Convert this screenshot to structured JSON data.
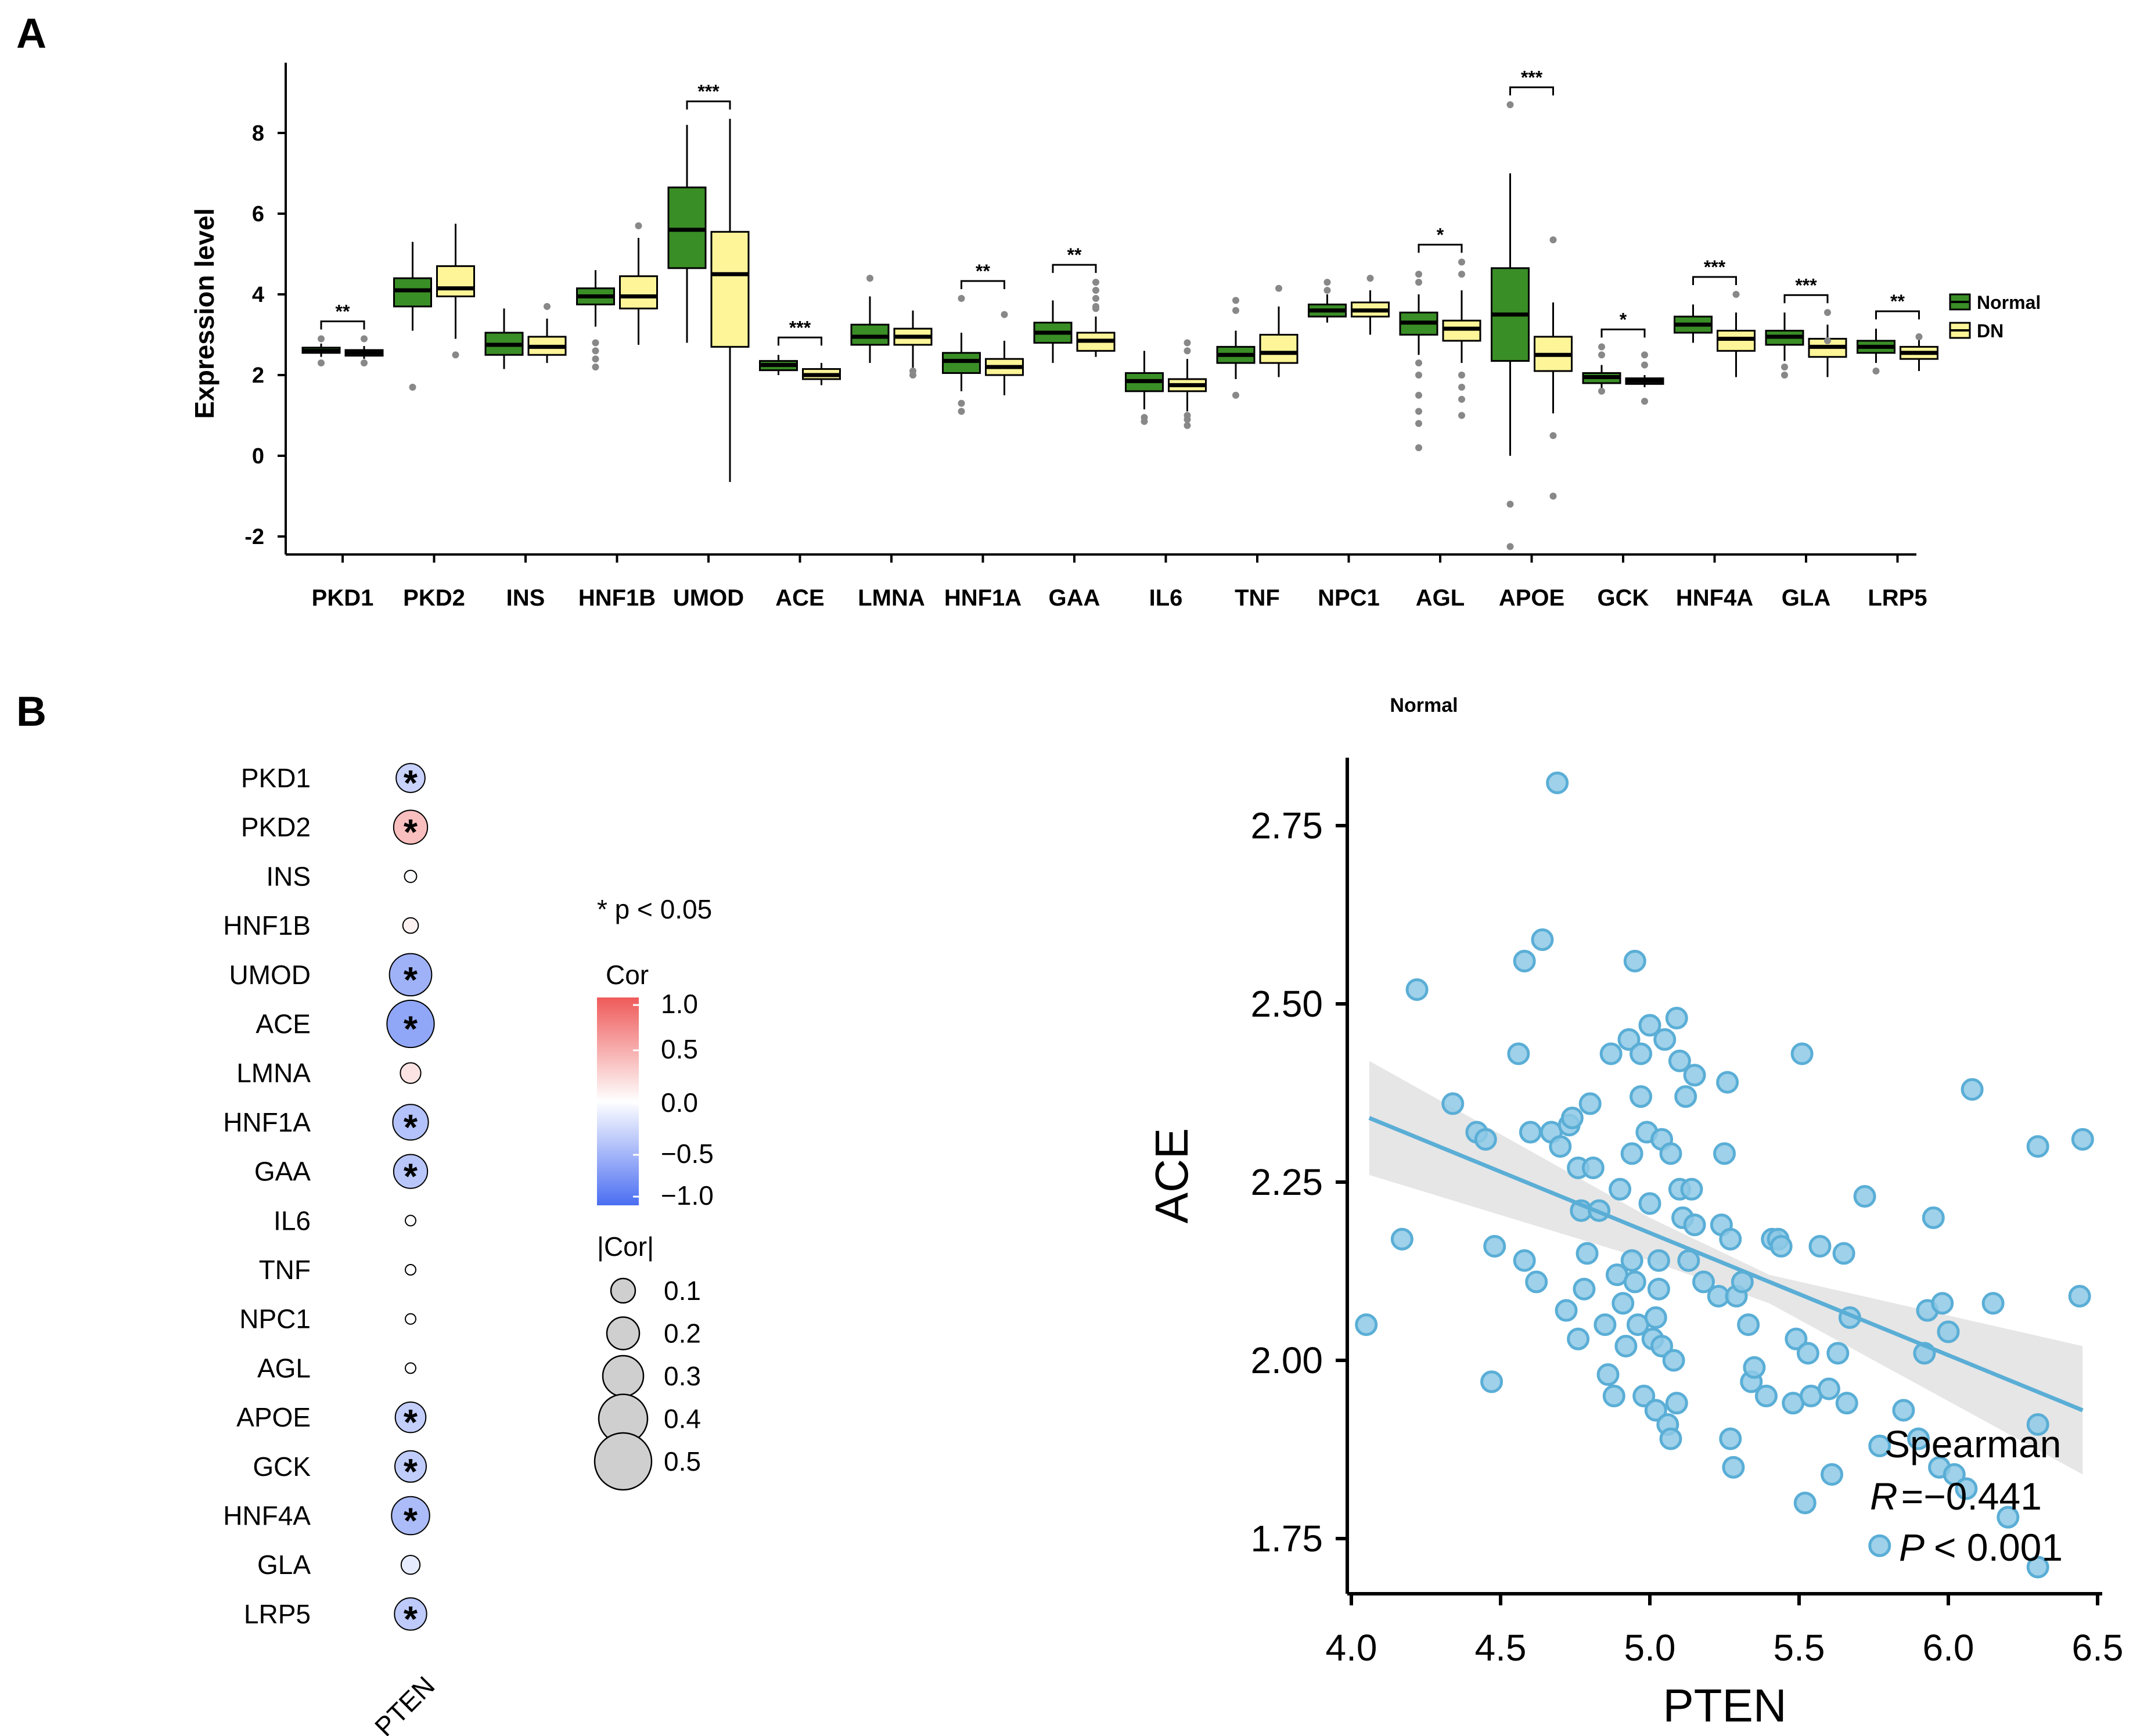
{
  "colors": {
    "normal": "#3a8e26",
    "dn": "#fdf598",
    "scatter": "#6cb7db",
    "line": "#5aaed6",
    "band": "#d9d9d9",
    "pos": "#ef5a5a",
    "neg": "#4b6ef2"
  },
  "panel_a": {
    "label": "A",
    "chart_data": {
      "type": "box",
      "title": "",
      "xlabel": "",
      "ylabel": "Expression level",
      "ylim": [
        -2.5,
        9.5
      ],
      "yticks": [
        -2,
        0,
        2,
        4,
        6,
        8
      ],
      "categories": [
        "PKD1",
        "PKD2",
        "INS",
        "HNF1B",
        "UMOD",
        "ACE",
        "LMNA",
        "HNF1A",
        "GAA",
        "IL6",
        "TNF",
        "NPC1",
        "AGL",
        "APOE",
        "GCK",
        "HNF4A",
        "GLA",
        "LRP5"
      ],
      "significance": [
        "**",
        "",
        "",
        "",
        "***",
        "***",
        "",
        "**",
        "**",
        "",
        "",
        "",
        "*",
        "***",
        "*",
        "***",
        "***",
        "**"
      ],
      "legend": [
        {
          "name": "Normal"
        },
        {
          "name": "DN"
        }
      ],
      "series": [
        {
          "name": "Normal",
          "boxes": [
            {
              "min": 2.45,
              "q1": 2.55,
              "median": 2.6,
              "q3": 2.68,
              "max": 2.78,
              "outliers": [
                2.3,
                2.9
              ]
            },
            {
              "min": 3.1,
              "q1": 3.7,
              "median": 4.1,
              "q3": 4.4,
              "max": 5.3,
              "outliers": [
                1.7
              ]
            },
            {
              "min": 2.15,
              "q1": 2.5,
              "median": 2.75,
              "q3": 3.05,
              "max": 3.65,
              "outliers": []
            },
            {
              "min": 3.2,
              "q1": 3.75,
              "median": 3.95,
              "q3": 4.15,
              "max": 4.6,
              "outliers": [
                2.2,
                2.8,
                2.6,
                2.4
              ]
            },
            {
              "min": 2.8,
              "q1": 4.65,
              "median": 5.6,
              "q3": 6.65,
              "max": 8.2,
              "outliers": []
            },
            {
              "min": 2.0,
              "q1": 2.12,
              "median": 2.25,
              "q3": 2.35,
              "max": 2.5,
              "outliers": []
            },
            {
              "min": 2.3,
              "q1": 2.75,
              "median": 2.95,
              "q3": 3.25,
              "max": 3.95,
              "outliers": [
                4.4
              ]
            },
            {
              "min": 1.6,
              "q1": 2.05,
              "median": 2.35,
              "q3": 2.55,
              "max": 3.05,
              "outliers": [
                1.1,
                1.3,
                3.9
              ]
            },
            {
              "min": 2.3,
              "q1": 2.8,
              "median": 3.05,
              "q3": 3.3,
              "max": 3.85,
              "outliers": []
            },
            {
              "min": 1.15,
              "q1": 1.6,
              "median": 1.85,
              "q3": 2.05,
              "max": 2.6,
              "outliers": [
                0.85,
                0.95
              ]
            },
            {
              "min": 1.9,
              "q1": 2.3,
              "median": 2.5,
              "q3": 2.7,
              "max": 3.1,
              "outliers": [
                1.5,
                3.85,
                3.6
              ]
            },
            {
              "min": 3.3,
              "q1": 3.45,
              "median": 3.6,
              "q3": 3.75,
              "max": 4.0,
              "outliers": [
                4.3,
                4.1
              ]
            },
            {
              "min": 2.5,
              "q1": 3.0,
              "median": 3.3,
              "q3": 3.55,
              "max": 4.0,
              "outliers": [
                0.2,
                0.8,
                1.1,
                1.5,
                2.0,
                2.3,
                4.3,
                4.5
              ]
            },
            {
              "min": 0.0,
              "q1": 2.35,
              "median": 3.5,
              "q3": 4.65,
              "max": 7.0,
              "outliers": [
                8.7,
                -1.2,
                -2.25
              ]
            },
            {
              "min": 1.65,
              "q1": 1.8,
              "median": 1.95,
              "q3": 2.05,
              "max": 2.25,
              "outliers": [
                2.5,
                2.7,
                1.6
              ]
            },
            {
              "min": 2.8,
              "q1": 3.05,
              "median": 3.25,
              "q3": 3.45,
              "max": 3.75,
              "outliers": []
            },
            {
              "min": 2.35,
              "q1": 2.75,
              "median": 2.95,
              "q3": 3.1,
              "max": 3.55,
              "outliers": [
                2.0,
                2.2
              ]
            },
            {
              "min": 2.3,
              "q1": 2.55,
              "median": 2.7,
              "q3": 2.85,
              "max": 3.15,
              "outliers": [
                2.1
              ]
            }
          ]
        },
        {
          "name": "DN",
          "boxes": [
            {
              "min": 2.4,
              "q1": 2.48,
              "median": 2.55,
              "q3": 2.62,
              "max": 2.72,
              "outliers": [
                2.9,
                2.3
              ]
            },
            {
              "min": 2.9,
              "q1": 3.95,
              "median": 4.15,
              "q3": 4.7,
              "max": 5.75,
              "outliers": [
                2.5
              ]
            },
            {
              "min": 2.3,
              "q1": 2.5,
              "median": 2.7,
              "q3": 2.95,
              "max": 3.4,
              "outliers": [
                3.7
              ]
            },
            {
              "min": 2.75,
              "q1": 3.65,
              "median": 3.95,
              "q3": 4.45,
              "max": 5.4,
              "outliers": [
                5.7
              ]
            },
            {
              "min": -0.65,
              "q1": 2.7,
              "median": 4.5,
              "q3": 5.55,
              "max": 8.35,
              "outliers": []
            },
            {
              "min": 1.75,
              "q1": 1.9,
              "median": 2.0,
              "q3": 2.15,
              "max": 2.3,
              "outliers": []
            },
            {
              "min": 2.15,
              "q1": 2.75,
              "median": 2.95,
              "q3": 3.15,
              "max": 3.6,
              "outliers": [
                2.0,
                2.1
              ]
            },
            {
              "min": 1.5,
              "q1": 2.0,
              "median": 2.2,
              "q3": 2.4,
              "max": 2.85,
              "outliers": [
                3.5
              ]
            },
            {
              "min": 2.45,
              "q1": 2.6,
              "median": 2.85,
              "q3": 3.05,
              "max": 3.45,
              "outliers": [
                3.9,
                3.65,
                4.1,
                4.3,
                3.7
              ]
            },
            {
              "min": 1.1,
              "q1": 1.6,
              "median": 1.75,
              "q3": 1.9,
              "max": 2.4,
              "outliers": [
                0.75,
                0.9,
                1.0,
                2.6,
                2.8
              ]
            },
            {
              "min": 1.95,
              "q1": 2.3,
              "median": 2.55,
              "q3": 3.0,
              "max": 3.7,
              "outliers": [
                4.15
              ]
            },
            {
              "min": 3.0,
              "q1": 3.45,
              "median": 3.6,
              "q3": 3.8,
              "max": 4.1,
              "outliers": [
                4.4
              ]
            },
            {
              "min": 2.3,
              "q1": 2.85,
              "median": 3.15,
              "q3": 3.35,
              "max": 4.1,
              "outliers": [
                1.0,
                1.4,
                1.7,
                2.0,
                4.5,
                4.8
              ]
            },
            {
              "min": 1.05,
              "q1": 2.1,
              "median": 2.5,
              "q3": 2.95,
              "max": 3.8,
              "outliers": [
                5.35,
                0.5,
                -1.0
              ]
            },
            {
              "min": 1.7,
              "q1": 1.78,
              "median": 1.85,
              "q3": 1.92,
              "max": 2.0,
              "outliers": [
                2.5,
                2.25,
                1.35
              ]
            },
            {
              "min": 1.95,
              "q1": 2.6,
              "median": 2.9,
              "q3": 3.1,
              "max": 3.55,
              "outliers": [
                4.0
              ]
            },
            {
              "min": 1.95,
              "q1": 2.45,
              "median": 2.7,
              "q3": 2.9,
              "max": 3.25,
              "outliers": [
                2.85,
                3.55
              ]
            },
            {
              "min": 2.1,
              "q1": 2.4,
              "median": 2.55,
              "q3": 2.7,
              "max": 2.9,
              "outliers": [
                2.95
              ]
            }
          ]
        }
      ]
    }
  },
  "panel_b_left": {
    "label": "B",
    "chart_data": {
      "type": "heatmap",
      "title": "",
      "x_labels": [
        "PTEN"
      ],
      "y_labels": [
        "PKD1",
        "PKD2",
        "INS",
        "HNF1B",
        "UMOD",
        "ACE",
        "LMNA",
        "HNF1A",
        "GAA",
        "IL6",
        "TNF",
        "NPC1",
        "AGL",
        "APOE",
        "GCK",
        "HNF4A",
        "GLA",
        "LRP5"
      ],
      "cor": [
        -0.22,
        0.28,
        -0.02,
        0.06,
        -0.38,
        -0.44,
        0.12,
        -0.3,
        -0.28,
        0.0,
        0.0,
        0.0,
        0.0,
        -0.24,
        -0.25,
        -0.33,
        -0.1,
        -0.26
      ],
      "significant": [
        true,
        true,
        false,
        false,
        true,
        true,
        false,
        true,
        true,
        false,
        false,
        false,
        false,
        true,
        true,
        true,
        false,
        true
      ],
      "star_glyph": "*",
      "note": "* p < 0.05",
      "color_legend_title": "Cor",
      "color_ticks": [
        1.0,
        0.5,
        0.0,
        -0.5,
        -1.0
      ],
      "color_tick_labels": [
        "1.0",
        "0.5",
        "0.0",
        "−0.5",
        "−1.0"
      ],
      "size_legend_title": "|Cor|",
      "size_ticks": [
        0.1,
        0.2,
        0.3,
        0.4,
        0.5
      ],
      "size_tick_labels": [
        "0.1",
        "0.2",
        "0.3",
        "0.4",
        "0.5"
      ]
    }
  },
  "panel_b_right": {
    "chart_data": {
      "type": "scatter",
      "title": "Normal",
      "xlabel": "PTEN",
      "ylabel": "ACE",
      "xlim": [
        4.0,
        6.5
      ],
      "ylim": [
        1.68,
        2.82
      ],
      "xticks": [
        4.0,
        4.5,
        5.0,
        5.5,
        6.0,
        6.5
      ],
      "xtick_labels": [
        "4.0",
        "4.5",
        "5.0",
        "5.5",
        "6.0",
        "6.5"
      ],
      "yticks": [
        1.75,
        2.0,
        2.25,
        2.5,
        2.75
      ],
      "ytick_labels": [
        "1.75",
        "2.00",
        "2.25",
        "2.50",
        "2.75"
      ],
      "fit": {
        "x0": 4.06,
        "y0": 2.34,
        "x1": 6.45,
        "y1": 1.93
      },
      "band": {
        "lower": [
          [
            4.06,
            2.26
          ],
          [
            5.0,
            2.14
          ],
          [
            5.4,
            2.08
          ],
          [
            6.45,
            1.84
          ]
        ],
        "upper": [
          [
            4.06,
            2.42
          ],
          [
            5.0,
            2.2
          ],
          [
            5.4,
            2.12
          ],
          [
            6.45,
            2.02
          ]
        ]
      },
      "annotation": {
        "method": "Spearman",
        "r_label": "R",
        "r_value": "=−0.441",
        "p_label": "P",
        "p_value": "< 0.001"
      },
      "points": [
        [
          4.05,
          2.05
        ],
        [
          4.17,
          2.17
        ],
        [
          4.22,
          2.52
        ],
        [
          4.34,
          2.36
        ],
        [
          4.42,
          2.32
        ],
        [
          4.45,
          2.31
        ],
        [
          4.48,
          2.16
        ],
        [
          4.47,
          1.97
        ],
        [
          4.56,
          2.43
        ],
        [
          4.58,
          2.14
        ],
        [
          4.58,
          2.56
        ],
        [
          4.6,
          2.32
        ],
        [
          4.62,
          2.11
        ],
        [
          4.64,
          2.59
        ],
        [
          4.67,
          2.32
        ],
        [
          4.69,
          2.81
        ],
        [
          4.7,
          2.3
        ],
        [
          4.72,
          2.07
        ],
        [
          4.73,
          2.33
        ],
        [
          4.74,
          2.34
        ],
        [
          4.76,
          2.27
        ],
        [
          4.77,
          2.21
        ],
        [
          4.78,
          2.1
        ],
        [
          4.76,
          2.03
        ],
        [
          4.79,
          2.15
        ],
        [
          4.8,
          2.36
        ],
        [
          4.81,
          2.27
        ],
        [
          4.83,
          2.21
        ],
        [
          4.85,
          2.05
        ],
        [
          4.86,
          1.98
        ],
        [
          4.87,
          2.43
        ],
        [
          4.88,
          1.95
        ],
        [
          4.89,
          2.12
        ],
        [
          4.9,
          2.24
        ],
        [
          4.91,
          2.08
        ],
        [
          4.92,
          2.02
        ],
        [
          4.93,
          2.45
        ],
        [
          4.94,
          2.29
        ],
        [
          4.94,
          2.14
        ],
        [
          4.95,
          2.11
        ],
        [
          4.95,
          2.56
        ],
        [
          4.96,
          2.05
        ],
        [
          4.97,
          2.43
        ],
        [
          4.97,
          2.37
        ],
        [
          4.98,
          1.95
        ],
        [
          4.99,
          2.32
        ],
        [
          5.0,
          2.47
        ],
        [
          5.0,
          2.22
        ],
        [
          5.01,
          2.03
        ],
        [
          5.02,
          1.93
        ],
        [
          5.02,
          2.06
        ],
        [
          5.03,
          2.14
        ],
        [
          5.03,
          2.1
        ],
        [
          5.04,
          2.31
        ],
        [
          5.04,
          2.02
        ],
        [
          5.05,
          2.45
        ],
        [
          5.06,
          1.91
        ],
        [
          5.07,
          1.89
        ],
        [
          5.07,
          2.29
        ],
        [
          5.08,
          2.0
        ],
        [
          5.09,
          2.48
        ],
        [
          5.09,
          1.94
        ],
        [
          5.1,
          2.24
        ],
        [
          5.1,
          2.42
        ],
        [
          5.11,
          2.2
        ],
        [
          5.12,
          2.37
        ],
        [
          5.13,
          2.14
        ],
        [
          5.14,
          2.24
        ],
        [
          5.15,
          2.4
        ],
        [
          5.15,
          2.19
        ],
        [
          5.18,
          2.11
        ],
        [
          5.23,
          2.09
        ],
        [
          5.24,
          2.19
        ],
        [
          5.25,
          2.29
        ],
        [
          5.26,
          2.39
        ],
        [
          5.27,
          2.17
        ],
        [
          5.27,
          1.89
        ],
        [
          5.28,
          1.85
        ],
        [
          5.29,
          2.09
        ],
        [
          5.31,
          2.11
        ],
        [
          5.33,
          2.05
        ],
        [
          5.34,
          1.97
        ],
        [
          5.35,
          1.99
        ],
        [
          5.39,
          1.95
        ],
        [
          5.41,
          2.17
        ],
        [
          5.43,
          2.17
        ],
        [
          5.44,
          2.16
        ],
        [
          5.48,
          1.94
        ],
        [
          5.49,
          2.03
        ],
        [
          5.51,
          2.43
        ],
        [
          5.52,
          1.8
        ],
        [
          5.53,
          2.01
        ],
        [
          5.54,
          1.95
        ],
        [
          5.57,
          2.16
        ],
        [
          5.6,
          1.96
        ],
        [
          5.61,
          1.84
        ],
        [
          5.63,
          2.01
        ],
        [
          5.65,
          2.15
        ],
        [
          5.66,
          1.94
        ],
        [
          5.67,
          2.06
        ],
        [
          5.72,
          2.23
        ],
        [
          5.77,
          1.88
        ],
        [
          5.77,
          1.74
        ],
        [
          5.85,
          1.93
        ],
        [
          5.9,
          1.89
        ],
        [
          5.92,
          2.01
        ],
        [
          5.93,
          2.07
        ],
        [
          5.95,
          2.2
        ],
        [
          5.97,
          1.85
        ],
        [
          5.98,
          2.08
        ],
        [
          6.0,
          2.04
        ],
        [
          6.02,
          1.84
        ],
        [
          6.06,
          1.82
        ],
        [
          6.08,
          2.38
        ],
        [
          6.15,
          2.08
        ],
        [
          6.2,
          1.78
        ],
        [
          6.3,
          1.91
        ],
        [
          6.3,
          1.71
        ],
        [
          6.3,
          2.3
        ],
        [
          6.44,
          2.09
        ],
        [
          6.45,
          2.31
        ]
      ]
    }
  }
}
